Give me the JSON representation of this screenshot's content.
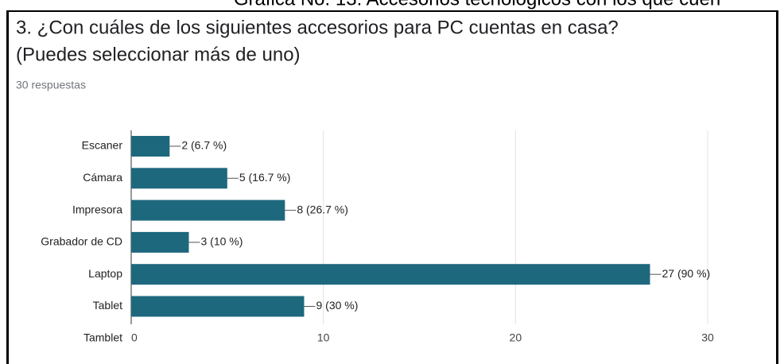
{
  "caption": "Gráfica No. 13. Accesorios tecnológicos con los que cuen",
  "chart_data": {
    "type": "hbar",
    "title": "3. ¿Con cuáles de los siguientes accesorios para PC cuentas en casa?",
    "subtitle": "(Puedes seleccionar más de uno)",
    "responses": "30 respuestas",
    "categories": [
      "Escaner",
      "Cámara",
      "Impresora",
      "Grabador de CD",
      "Laptop",
      "Tablet",
      "Tamblet"
    ],
    "values": [
      2,
      5,
      8,
      3,
      27,
      9,
      0
    ],
    "value_labels": [
      "2 (6.7 %)",
      "5 (16.7 %)",
      "8 (26.7 %)",
      "3 (10 %)",
      "27 (90 %)",
      "9 (30 %)",
      null
    ],
    "color": "#1e687d",
    "xlim": [
      0,
      30
    ],
    "xticks": [
      0,
      10,
      20,
      30
    ],
    "grid": true
  }
}
